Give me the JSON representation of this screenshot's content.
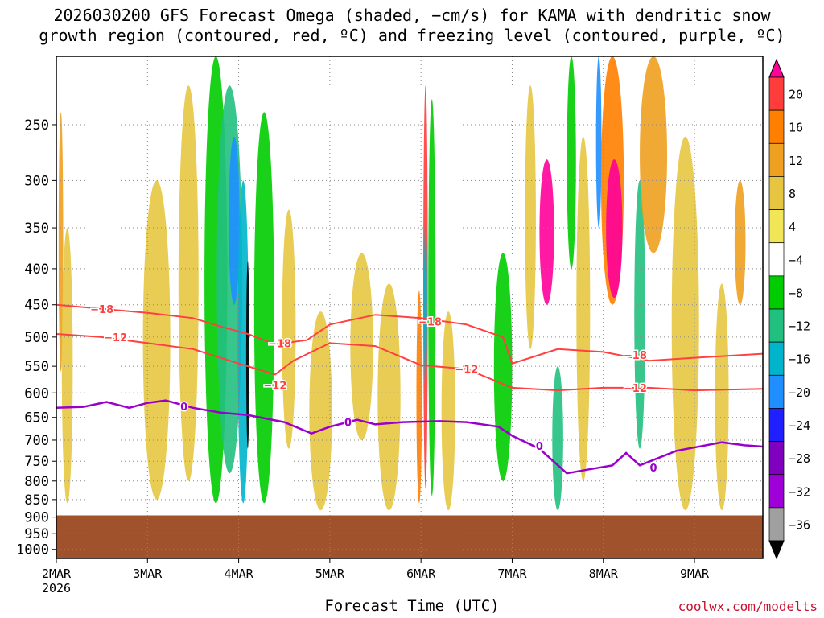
{
  "title": {
    "line1": "2026030200 GFS Forecast Omega (shaded, −cm/s) for KAMA with dendritic snow",
    "line2": "growth region (contoured, red, ºC) and freezing level (contoured, purple, ºC)"
  },
  "xlabel": "Forecast Time (UTC)",
  "credit": "coolwx.com/modelts",
  "colors": {
    "ground": "#a0522d",
    "dgz": "#ff4040",
    "freezing": "#9a00cc",
    "grid": "#888888",
    "credit": "#c8102e"
  },
  "chart_data": {
    "type": "heatmap",
    "title": "2026030200 GFS Forecast Omega (shaded, −cm/s) for KAMA with dendritic snow growth region (contoured, red, ºC) and freezing level (contoured, purple, ºC)",
    "xlabel": "Forecast Time (UTC)",
    "ylabel": "",
    "x_ticks": [
      {
        "label": "2MAR",
        "sub": "2026",
        "day": 0
      },
      {
        "label": "3MAR",
        "sub": "",
        "day": 1
      },
      {
        "label": "4MAR",
        "sub": "",
        "day": 2
      },
      {
        "label": "5MAR",
        "sub": "",
        "day": 3
      },
      {
        "label": "6MAR",
        "sub": "",
        "day": 4
      },
      {
        "label": "7MAR",
        "sub": "",
        "day": 5
      },
      {
        "label": "8MAR",
        "sub": "",
        "day": 6
      },
      {
        "label": "9MAR",
        "sub": "",
        "day": 7
      }
    ],
    "x_range_days": [
      0,
      7.75
    ],
    "y_ticks": [
      250,
      300,
      350,
      400,
      450,
      500,
      550,
      600,
      650,
      700,
      750,
      800,
      850,
      900,
      950,
      1000
    ],
    "y_range_hpa": [
      200,
      1030
    ],
    "y_scale": "log-pressure",
    "ground_level_hpa": 895,
    "colorbar": {
      "labels": [
        "20",
        "16",
        "12",
        "8",
        "4",
        "−4",
        "−8",
        "−12",
        "−16",
        "−20",
        "−24",
        "−28",
        "−32",
        "−36"
      ],
      "bins": [
        {
          "color": "#ff0099"
        },
        {
          "color": "#ff3c3c"
        },
        {
          "color": "#ff8000"
        },
        {
          "color": "#f0a020"
        },
        {
          "color": "#e6c640"
        },
        {
          "color": "#f0e658"
        },
        {
          "color": "#ffffff"
        },
        {
          "color": "#00cc00"
        },
        {
          "color": "#22c080"
        },
        {
          "color": "#00b4cc"
        },
        {
          "color": "#1f8fff"
        },
        {
          "color": "#1f1fff"
        },
        {
          "color": "#8000c0"
        },
        {
          "color": "#a000d8"
        },
        {
          "color": "#a0a0a0"
        },
        {
          "color": "#000000"
        }
      ]
    },
    "omega_features": [
      {
        "day": 0.05,
        "w": 0.05,
        "p_top": 240,
        "p_bot": 560,
        "value": 12
      },
      {
        "day": 0.12,
        "w": 0.12,
        "p_top": 350,
        "p_bot": 860,
        "value": 6
      },
      {
        "day": 1.1,
        "w": 0.3,
        "p_top": 300,
        "p_bot": 850,
        "value": 6
      },
      {
        "day": 1.45,
        "w": 0.22,
        "p_top": 220,
        "p_bot": 800,
        "value": 5
      },
      {
        "day": 1.75,
        "w": 0.25,
        "p_top": 200,
        "p_bot": 860,
        "value": -8
      },
      {
        "day": 1.9,
        "w": 0.28,
        "p_top": 220,
        "p_bot": 780,
        "value": -14
      },
      {
        "day": 1.95,
        "w": 0.12,
        "p_top": 260,
        "p_bot": 450,
        "value": -20
      },
      {
        "day": 2.05,
        "w": 0.12,
        "p_top": 300,
        "p_bot": 860,
        "value": -18
      },
      {
        "day": 2.1,
        "w": 0.03,
        "p_top": 390,
        "p_bot": 720,
        "value": -36
      },
      {
        "day": 2.28,
        "w": 0.22,
        "p_top": 240,
        "p_bot": 860,
        "value": -8
      },
      {
        "day": 2.55,
        "w": 0.15,
        "p_top": 330,
        "p_bot": 720,
        "value": 6
      },
      {
        "day": 2.9,
        "w": 0.25,
        "p_top": 460,
        "p_bot": 880,
        "value": 5
      },
      {
        "day": 3.35,
        "w": 0.25,
        "p_top": 380,
        "p_bot": 700,
        "value": 6
      },
      {
        "day": 3.65,
        "w": 0.25,
        "p_top": 420,
        "p_bot": 880,
        "value": 5
      },
      {
        "day": 3.98,
        "w": 0.06,
        "p_top": 430,
        "p_bot": 860,
        "value": 14
      },
      {
        "day": 4.05,
        "w": 0.05,
        "p_top": 220,
        "p_bot": 820,
        "value": 18
      },
      {
        "day": 4.05,
        "w": 0.025,
        "p_top": 340,
        "p_bot": 600,
        "value": -16
      },
      {
        "day": 4.12,
        "w": 0.08,
        "p_top": 230,
        "p_bot": 840,
        "value": -10
      },
      {
        "day": 4.3,
        "w": 0.15,
        "p_top": 460,
        "p_bot": 880,
        "value": 5
      },
      {
        "day": 4.9,
        "w": 0.2,
        "p_top": 380,
        "p_bot": 800,
        "value": -8
      },
      {
        "day": 5.2,
        "w": 0.12,
        "p_top": 220,
        "p_bot": 520,
        "value": 8
      },
      {
        "day": 5.38,
        "w": 0.16,
        "p_top": 280,
        "p_bot": 450,
        "value": 22
      },
      {
        "day": 5.5,
        "w": 0.12,
        "p_top": 550,
        "p_bot": 880,
        "value": -12
      },
      {
        "day": 5.65,
        "w": 0.1,
        "p_top": 200,
        "p_bot": 400,
        "value": -10
      },
      {
        "day": 5.78,
        "w": 0.15,
        "p_top": 260,
        "p_bot": 800,
        "value": 6
      },
      {
        "day": 5.95,
        "w": 0.06,
        "p_top": 200,
        "p_bot": 350,
        "value": -22
      },
      {
        "day": 6.1,
        "w": 0.25,
        "p_top": 200,
        "p_bot": 450,
        "value": 14
      },
      {
        "day": 6.12,
        "w": 0.18,
        "p_top": 280,
        "p_bot": 440,
        "value": 22
      },
      {
        "day": 6.4,
        "w": 0.12,
        "p_top": 300,
        "p_bot": 720,
        "value": -12
      },
      {
        "day": 6.55,
        "w": 0.3,
        "p_top": 200,
        "p_bot": 380,
        "value": 12
      },
      {
        "day": 6.9,
        "w": 0.3,
        "p_top": 260,
        "p_bot": 880,
        "value": 5
      },
      {
        "day": 7.3,
        "w": 0.15,
        "p_top": 420,
        "p_bot": 880,
        "value": 5
      },
      {
        "day": 7.5,
        "w": 0.12,
        "p_top": 300,
        "p_bot": 450,
        "value": 12
      }
    ],
    "dgz_contours": [
      {
        "label": "−18",
        "label_points": [
          [
            0.5,
            456
          ],
          [
            2.45,
            510
          ],
          [
            4.1,
            475
          ],
          [
            6.35,
            530
          ]
        ],
        "points": [
          [
            0,
            450
          ],
          [
            0.5,
            456
          ],
          [
            1.0,
            462
          ],
          [
            1.5,
            470
          ],
          [
            1.85,
            485
          ],
          [
            2.1,
            495
          ],
          [
            2.4,
            512
          ],
          [
            2.75,
            505
          ],
          [
            3.0,
            480
          ],
          [
            3.5,
            465
          ],
          [
            4.0,
            470
          ],
          [
            4.5,
            480
          ],
          [
            4.9,
            500
          ],
          [
            5.0,
            545
          ],
          [
            5.5,
            520
          ],
          [
            6.0,
            525
          ],
          [
            6.5,
            540
          ],
          [
            7.0,
            535
          ],
          [
            7.75,
            528
          ]
        ]
      },
      {
        "label": "−12",
        "label_points": [
          [
            0.65,
            500
          ],
          [
            2.4,
            585
          ],
          [
            4.5,
            555
          ],
          [
            6.35,
            590
          ]
        ],
        "points": [
          [
            0,
            495
          ],
          [
            0.5,
            500
          ],
          [
            1.0,
            510
          ],
          [
            1.5,
            520
          ],
          [
            2.0,
            545
          ],
          [
            2.4,
            565
          ],
          [
            2.6,
            540
          ],
          [
            3.0,
            510
          ],
          [
            3.5,
            515
          ],
          [
            4.0,
            548
          ],
          [
            4.5,
            555
          ],
          [
            5.0,
            590
          ],
          [
            5.5,
            595
          ],
          [
            6.0,
            590
          ],
          [
            6.5,
            590
          ],
          [
            7.0,
            595
          ],
          [
            7.75,
            592
          ]
        ]
      }
    ],
    "freezing_contour": {
      "label": "0",
      "label_points": [
        [
          1.4,
          627
        ],
        [
          3.2,
          660
        ],
        [
          5.3,
          713
        ],
        [
          6.55,
          765
        ]
      ],
      "points": [
        [
          0,
          630
        ],
        [
          0.3,
          628
        ],
        [
          0.55,
          618
        ],
        [
          0.8,
          630
        ],
        [
          1.0,
          620
        ],
        [
          1.2,
          615
        ],
        [
          1.5,
          630
        ],
        [
          1.8,
          640
        ],
        [
          2.1,
          645
        ],
        [
          2.5,
          660
        ],
        [
          2.8,
          685
        ],
        [
          3.0,
          670
        ],
        [
          3.3,
          655
        ],
        [
          3.5,
          665
        ],
        [
          3.8,
          660
        ],
        [
          4.2,
          658
        ],
        [
          4.5,
          660
        ],
        [
          4.85,
          670
        ],
        [
          5.0,
          690
        ],
        [
          5.3,
          720
        ],
        [
          5.6,
          780
        ],
        [
          5.85,
          770
        ],
        [
          6.1,
          760
        ],
        [
          6.25,
          730
        ],
        [
          6.4,
          760
        ],
        [
          6.8,
          725
        ],
        [
          7.3,
          705
        ],
        [
          7.55,
          712
        ],
        [
          7.75,
          715
        ]
      ]
    }
  }
}
